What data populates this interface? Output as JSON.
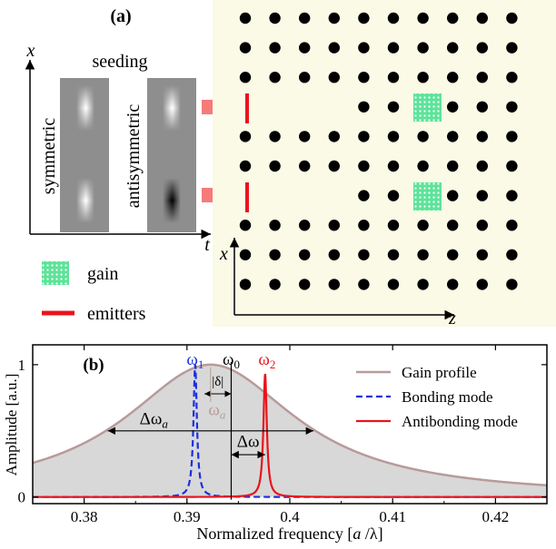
{
  "panel_a": {
    "label": "(a)",
    "axis_x": "x",
    "axis_t": "t",
    "seeding": "seeding",
    "symmetric": "symmetric",
    "antisymmetric": "antisymmetric",
    "legend_gain": "gain",
    "legend_emitters": "emitters",
    "lattice_axis_x": "x",
    "lattice_axis_z": "z",
    "lattice_bg": "#fafae6",
    "gain_color": "#5ee39a",
    "emitter_color": "#e8141b",
    "arrow_color": "#f57a7a"
  },
  "chart_data": {
    "type": "line",
    "panel_label": "(b)",
    "xlabel": "Normalized frequency [a /λ]",
    "ylabel": "Amplitude [a.u.]",
    "xlim": [
      0.375,
      0.425
    ],
    "ylim": [
      -0.05,
      1.15
    ],
    "xticks": [
      0.38,
      0.39,
      0.4,
      0.41,
      0.42
    ],
    "xtick_labels": [
      "0.38",
      "0.39",
      "0.4",
      "0.41",
      "0.42"
    ],
    "yticks": [
      0,
      1
    ],
    "ytick_labels": [
      "0",
      "1"
    ],
    "series": [
      {
        "name": "Gain profile",
        "kind": "lorentzian",
        "center": 0.3923,
        "hwhm": 0.0102,
        "amplitude": 1.0,
        "color": "#b99a9a",
        "fill": "#d8d8d8",
        "style": "solid"
      },
      {
        "name": "Bonding mode",
        "kind": "lorentzian",
        "center": 0.3908,
        "hwhm": 0.0002,
        "amplitude": 1.0,
        "color": "#1a2fe0",
        "style": "dashed"
      },
      {
        "name": "Antibonding mode",
        "kind": "lorentzian",
        "center": 0.3976,
        "hwhm": 0.0002,
        "amplitude": 0.93,
        "color": "#e8141b",
        "style": "solid"
      }
    ],
    "annotations": {
      "omega1": "ω1",
      "omega0": "ω0",
      "omega2": "ω2",
      "omega_a": "ωa",
      "delta": "|δ|",
      "delta_omega_a": "Δωa",
      "delta_omega": "Δω",
      "omega0_x": 0.3943,
      "delta_omega_a_range": [
        0.3823,
        0.4023
      ],
      "delta_omega_range": [
        0.3943,
        0.3976
      ],
      "delta_range": [
        0.3917,
        0.3943
      ]
    }
  }
}
